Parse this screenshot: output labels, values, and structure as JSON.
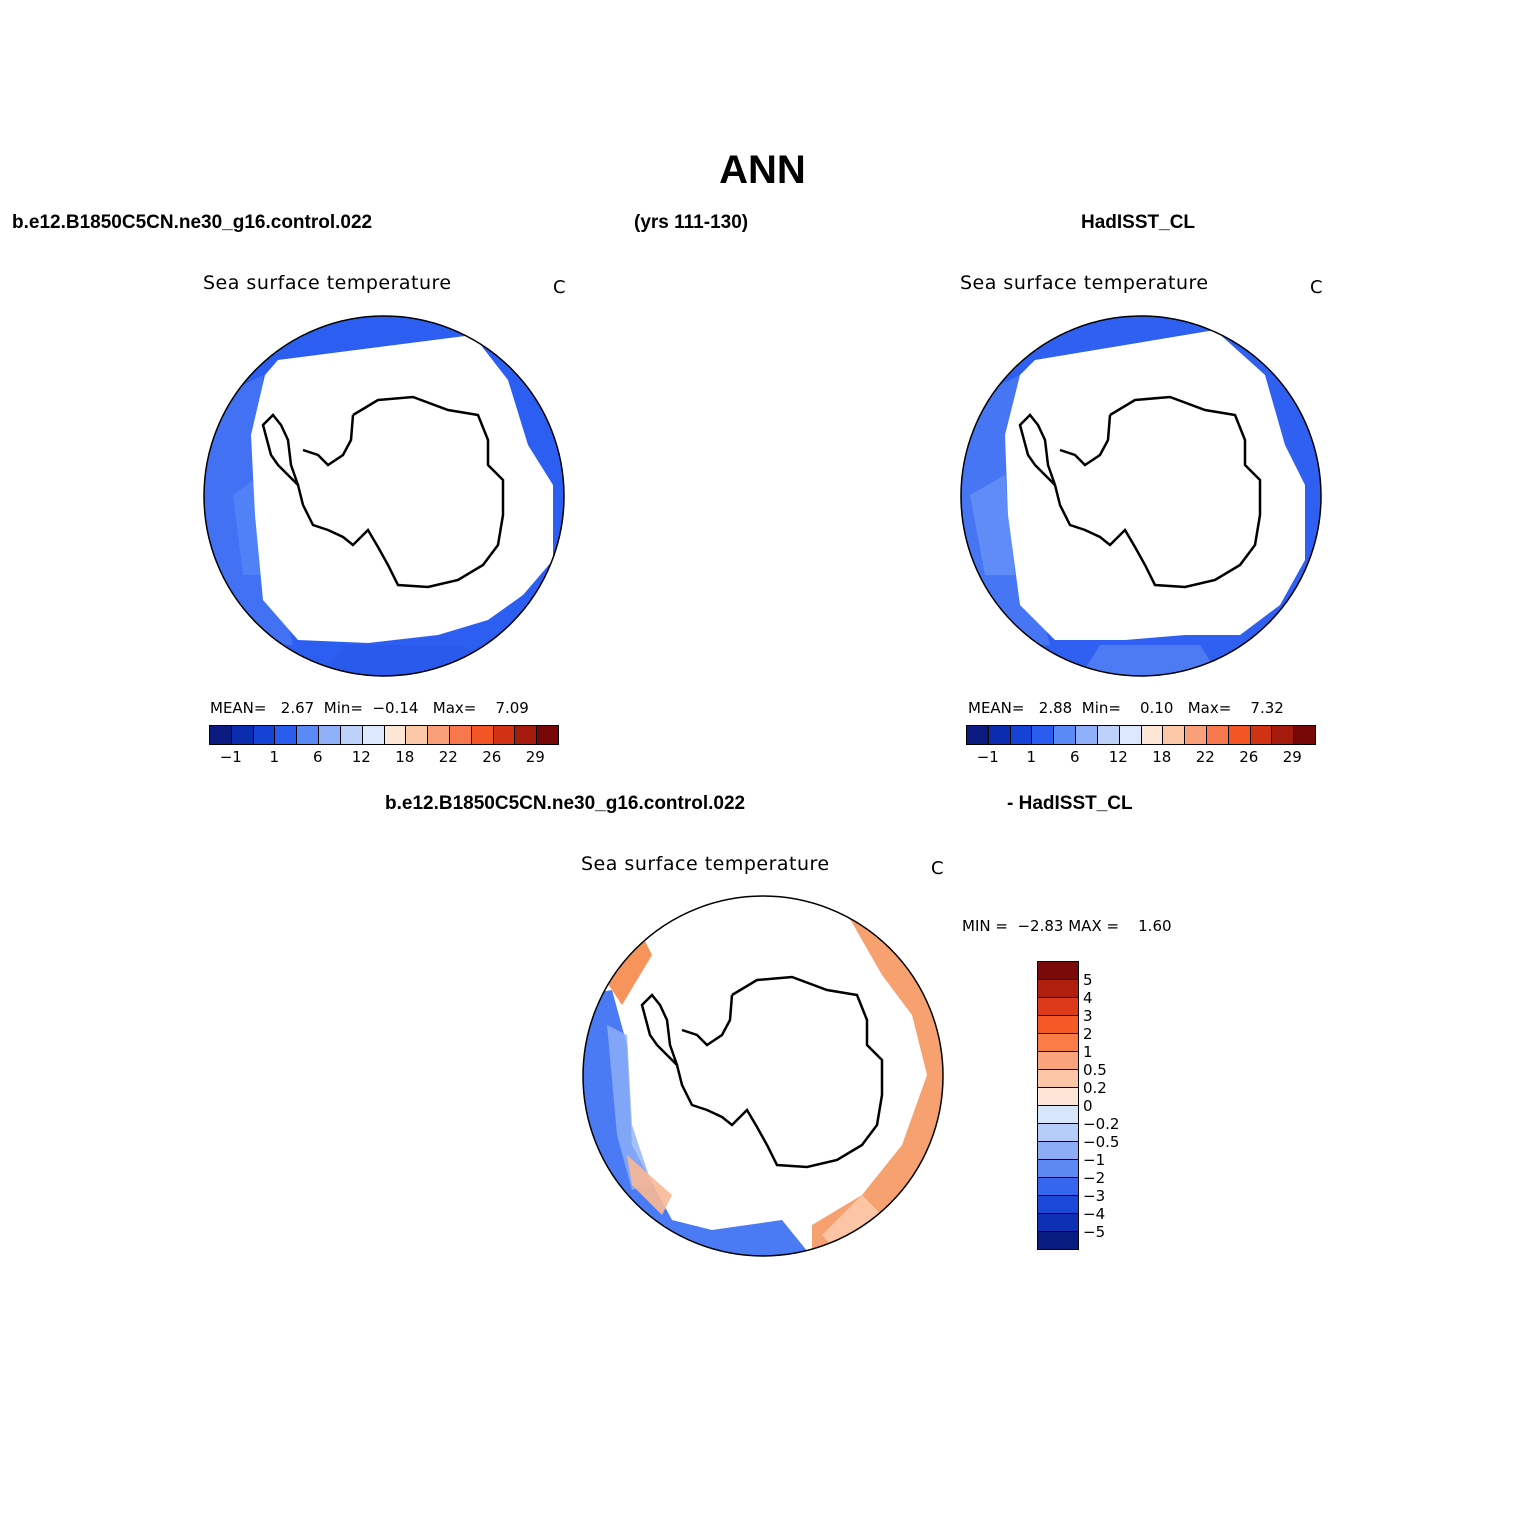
{
  "main_title": "ANN",
  "header": {
    "case_name": "b.e12.B1850C5CN.ne30_g16.control.022",
    "years": "(yrs 111-130)",
    "obs_name": "HadISST_CL"
  },
  "diff_header": {
    "case_name": "b.e12.B1850C5CN.ne30_g16.control.022",
    "obs_name": "- HadISST_CL"
  },
  "panels": {
    "model": {
      "title": "Sea surface temperature",
      "unit": "C",
      "mean_label": "MEAN=",
      "mean": "2.67",
      "min_label": "Min=",
      "min": "−0.14",
      "max_label": "Max=",
      "max": "7.09"
    },
    "obs": {
      "title": "Sea surface temperature",
      "unit": "C",
      "mean_label": "MEAN=",
      "mean": "2.88",
      "min_label": "Min=",
      "min": "0.10",
      "max_label": "Max=",
      "max": "7.32"
    },
    "diff": {
      "title": "Sea surface temperature",
      "unit": "C",
      "min_label": "MIN =",
      "min": "−2.83",
      "max_label": "MAX =",
      "max": "1.60"
    }
  },
  "colorbar_abs": {
    "colors": [
      "#0a1a80",
      "#0c2cb0",
      "#1443d6",
      "#2a5cf0",
      "#5a8af5",
      "#8fb0f8",
      "#bcd2fb",
      "#dbe8fd",
      "#fde6d6",
      "#fbc8a8",
      "#f9a07a",
      "#f7784c",
      "#f25424",
      "#d23214",
      "#a41a0c",
      "#780808"
    ],
    "labels": [
      "−1",
      "1",
      "6",
      "12",
      "18",
      "22",
      "26",
      "29"
    ]
  },
  "colorbar_diff": {
    "colors": [
      "#7a0a0a",
      "#b01e0e",
      "#dc3a18",
      "#f55a26",
      "#fa7c46",
      "#fba47c",
      "#fcc6a6",
      "#fde6d8",
      "#d8e6fc",
      "#b6cdfa",
      "#8cacf6",
      "#5c8af2",
      "#3566ee",
      "#1a48d8",
      "#0e30b4",
      "#081c82"
    ],
    "labels": [
      "5",
      "4",
      "3",
      "2",
      "1",
      "0.5",
      "0.2",
      "0",
      "−0.2",
      "−0.5",
      "−1",
      "−2",
      "−3",
      "−4",
      "−5"
    ]
  },
  "map_fill": {
    "model": "#2d5ef2",
    "obs": "#2f60f2",
    "diff_negative": "#4a7af4",
    "diff_positive": "#f7945c"
  }
}
